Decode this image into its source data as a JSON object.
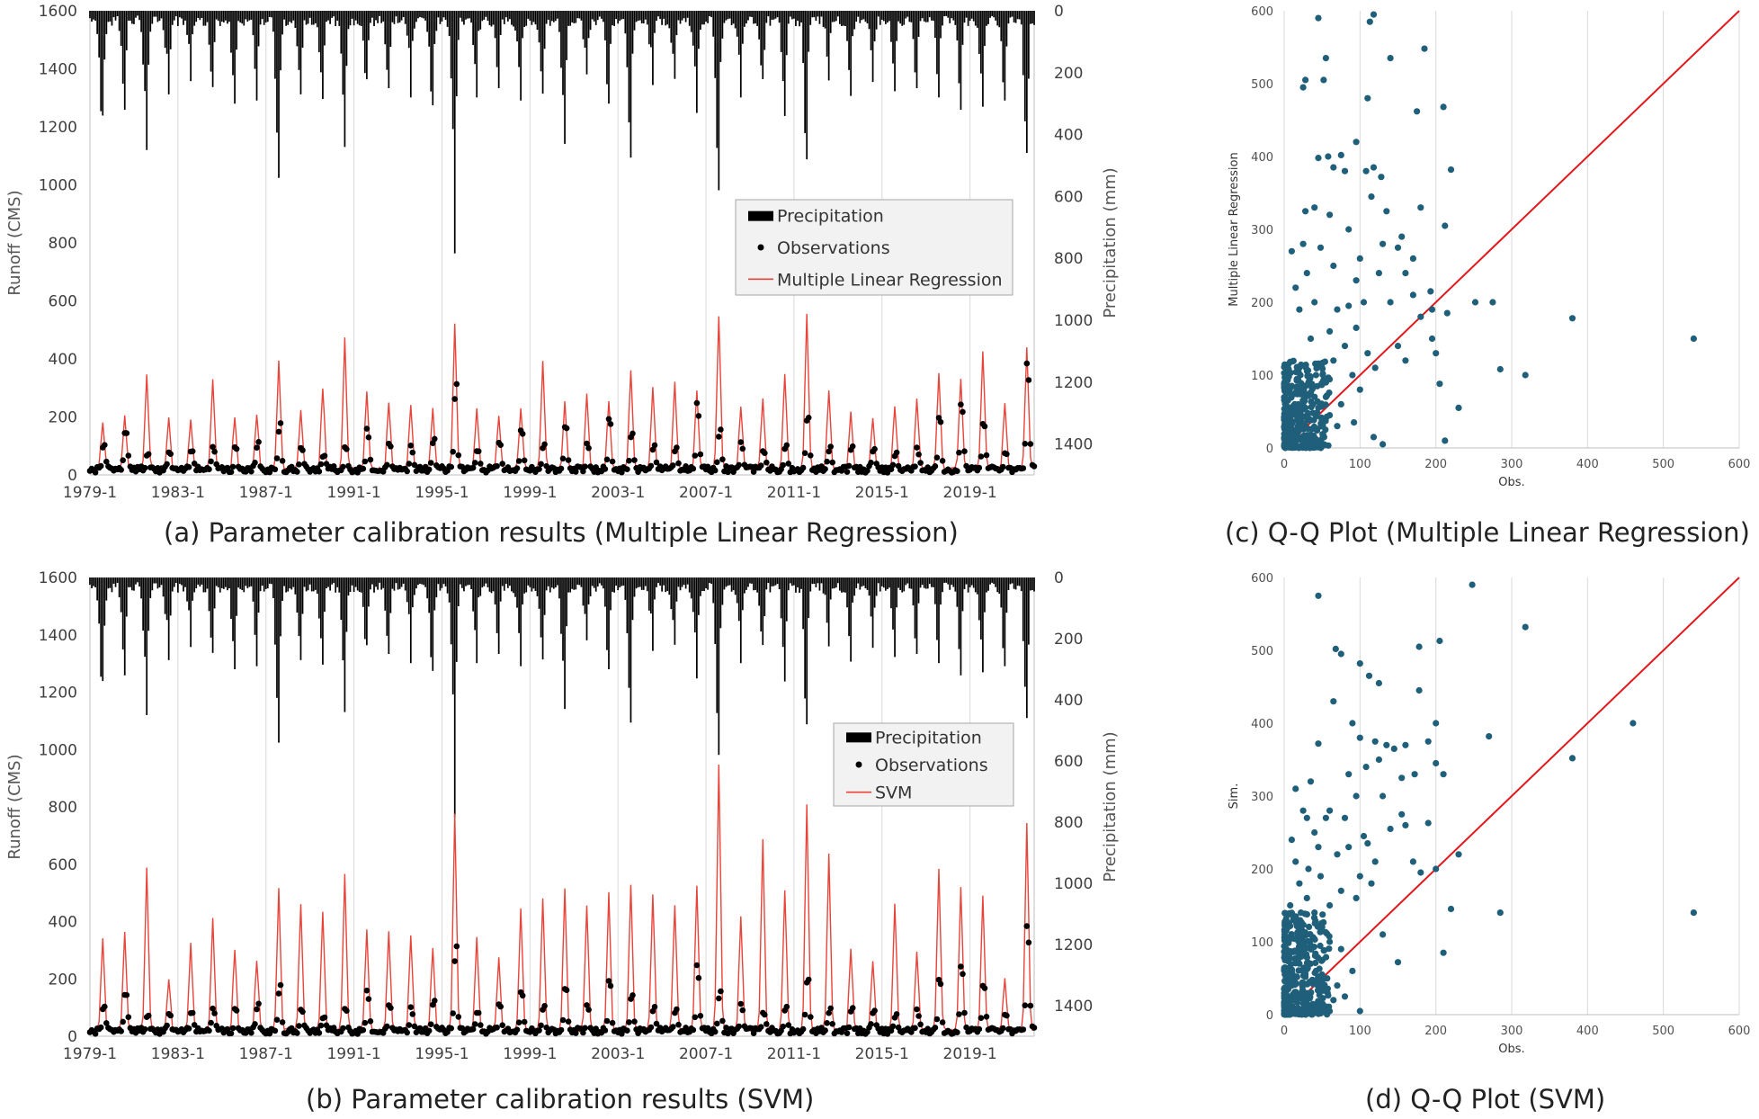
{
  "captions": {
    "a": "(a) Parameter calibration results (Multiple Linear Regression)",
    "b": "(b) Parameter calibration results (SVM)",
    "c": "(c) Q-Q Plot (Multiple Linear Regression)",
    "d": "(d) Q-Q Plot (SVM)"
  },
  "colors": {
    "precipitation": "#000000",
    "observations": "#000000",
    "model_line": "#e8443a",
    "scatter_points": "#1f5f7a",
    "identity_line": "#e3171b",
    "grid": "#d9d9d9"
  },
  "chart_data": [
    {
      "id": "a",
      "type": "line",
      "ylabel": "Runoff (CMS)",
      "y2label": "Precipitation (mm)",
      "ylim": [
        0,
        1600
      ],
      "y2lim": [
        1500,
        0
      ],
      "y2_inverted": true,
      "yticks": [
        "0",
        "200",
        "400",
        "600",
        "800",
        "1000",
        "1200",
        "1400",
        "1600"
      ],
      "y2ticks": [
        "0",
        "200",
        "400",
        "600",
        "800",
        "1000",
        "1200",
        "1400"
      ],
      "xticks": [
        "1979-1",
        "1983-1",
        "1987-1",
        "1991-1",
        "1995-1",
        "1999-1",
        "2003-1",
        "2007-1",
        "2011-1",
        "2015-1",
        "2019-1"
      ],
      "x_range": [
        "1979-1",
        "2021-12"
      ],
      "grid": "vertical",
      "legend_position": "right",
      "legend": [
        "Precipitation",
        "Observations",
        "Multiple Linear Regression"
      ],
      "series": [
        {
          "name": "Precipitation",
          "kind": "bar",
          "axis": "right",
          "annual_peaks_mm": [
            400,
            320,
            450,
            270,
            230,
            250,
            300,
            290,
            540,
            270,
            300,
            440,
            270,
            250,
            280,
            330,
            820,
            280,
            250,
            290,
            310,
            430,
            230,
            300,
            530,
            240,
            220,
            330,
            580,
            280,
            260,
            340,
            480,
            240,
            280,
            230,
            260,
            250,
            280,
            320,
            310,
            290,
            530
          ]
        },
        {
          "name": "Observations",
          "kind": "scatter",
          "axis": "left",
          "monthly_series": "seasonal",
          "annual_peaks": [
            115,
            200,
            90,
            100,
            110,
            130,
            105,
            140,
            210,
            110,
            95,
            125,
            200,
            120,
            110,
            140,
            390,
            110,
            135,
            200,
            125,
            215,
            140,
            230,
            180,
            115,
            120,
            320,
            195,
            130,
            110,
            135,
            280,
            120,
            115,
            100,
            95,
            110,
            245,
            290,
            230,
            95,
            465
          ]
        },
        {
          "name": "Multiple Linear Regression",
          "kind": "line",
          "axis": "left",
          "monthly_series": "seasonal",
          "annual_peaks": [
            185,
            200,
            350,
            195,
            190,
            330,
            195,
            210,
            390,
            220,
            300,
            470,
            290,
            250,
            240,
            225,
            520,
            230,
            200,
            230,
            390,
            250,
            280,
            255,
            365,
            305,
            315,
            290,
            550,
            240,
            265,
            350,
            560,
            290,
            215,
            200,
            240,
            260,
            350,
            330,
            430,
            250,
            440
          ]
        }
      ]
    },
    {
      "id": "b",
      "type": "line",
      "ylabel": "Runoff (CMS)",
      "y2label": "Precipitation (mm)",
      "ylim": [
        0,
        1600
      ],
      "y2lim": [
        1500,
        0
      ],
      "y2_inverted": true,
      "yticks": [
        "0",
        "200",
        "400",
        "600",
        "800",
        "1000",
        "1200",
        "1400",
        "1600"
      ],
      "y2ticks": [
        "0",
        "200",
        "400",
        "600",
        "800",
        "1000",
        "1200",
        "1400"
      ],
      "xticks": [
        "1979-1",
        "1983-1",
        "1987-1",
        "1991-1",
        "1995-1",
        "1999-1",
        "2003-1",
        "2007-1",
        "2011-1",
        "2015-1",
        "2019-1"
      ],
      "x_range": [
        "1979-1",
        "2021-12"
      ],
      "grid": "vertical",
      "legend_position": "right",
      "legend": [
        "Precipitation",
        "Observations",
        "SVM"
      ],
      "series": [
        {
          "name": "Precipitation",
          "kind": "bar",
          "axis": "right",
          "annual_peaks_mm": [
            400,
            320,
            450,
            270,
            230,
            250,
            300,
            290,
            540,
            270,
            300,
            440,
            270,
            250,
            280,
            330,
            820,
            280,
            250,
            290,
            310,
            430,
            230,
            300,
            530,
            240,
            220,
            330,
            580,
            280,
            260,
            340,
            480,
            240,
            280,
            230,
            260,
            250,
            280,
            320,
            310,
            290,
            530
          ]
        },
        {
          "name": "Observations",
          "kind": "scatter",
          "axis": "left",
          "monthly_series": "seasonal",
          "annual_peaks": [
            115,
            200,
            90,
            100,
            110,
            130,
            105,
            140,
            210,
            110,
            95,
            125,
            200,
            120,
            110,
            140,
            390,
            110,
            135,
            200,
            125,
            215,
            140,
            230,
            180,
            115,
            120,
            320,
            195,
            130,
            110,
            135,
            280,
            120,
            115,
            100,
            95,
            110,
            245,
            290,
            230,
            95,
            465
          ]
        },
        {
          "name": "SVM",
          "kind": "line",
          "axis": "left",
          "monthly_series": "seasonal",
          "annual_peaks": [
            335,
            360,
            590,
            200,
            320,
            410,
            300,
            265,
            510,
            460,
            430,
            560,
            370,
            365,
            350,
            310,
            780,
            340,
            270,
            440,
            480,
            510,
            450,
            500,
            525,
            495,
            460,
            530,
            950,
            420,
            690,
            510,
            810,
            630,
            300,
            260,
            460,
            290,
            580,
            520,
            490,
            200,
            740
          ]
        }
      ]
    },
    {
      "id": "c",
      "type": "scatter",
      "xlabel": "Obs.",
      "ylabel": "Multiple Linear Regression",
      "xlim": [
        0,
        600
      ],
      "ylim": [
        0,
        600
      ],
      "xticks": [
        "0",
        "100",
        "200",
        "300",
        "400",
        "500",
        "600"
      ],
      "yticks": [
        "0",
        "100",
        "200",
        "300",
        "400",
        "500",
        "600"
      ],
      "grid": "vertical",
      "identity_line": true,
      "points_summary": "dense cluster near origin (Obs. 0-60, Sim. 0-130)",
      "points": [
        [
          45,
          590
        ],
        [
          113,
          585
        ],
        [
          118,
          595
        ],
        [
          140,
          535
        ],
        [
          55,
          535
        ],
        [
          28,
          505
        ],
        [
          25,
          495
        ],
        [
          52,
          505
        ],
        [
          110,
          480
        ],
        [
          185,
          548
        ],
        [
          175,
          462
        ],
        [
          210,
          468
        ],
        [
          58,
          400
        ],
        [
          45,
          398
        ],
        [
          75,
          402
        ],
        [
          80,
          380
        ],
        [
          65,
          385
        ],
        [
          95,
          420
        ],
        [
          118,
          385
        ],
        [
          108,
          380
        ],
        [
          128,
          372
        ],
        [
          220,
          382
        ],
        [
          28,
          325
        ],
        [
          40,
          330
        ],
        [
          60,
          320
        ],
        [
          85,
          300
        ],
        [
          48,
          275
        ],
        [
          25,
          280
        ],
        [
          10,
          270
        ],
        [
          115,
          345
        ],
        [
          135,
          325
        ],
        [
          180,
          330
        ],
        [
          155,
          290
        ],
        [
          212,
          305
        ],
        [
          150,
          275
        ],
        [
          170,
          260
        ],
        [
          193,
          215
        ],
        [
          160,
          240
        ],
        [
          125,
          240
        ],
        [
          95,
          230
        ],
        [
          180,
          180
        ],
        [
          70,
          190
        ],
        [
          105,
          200
        ],
        [
          140,
          200
        ],
        [
          160,
          120
        ],
        [
          200,
          130
        ],
        [
          195,
          150
        ],
        [
          205,
          88
        ],
        [
          212,
          10
        ],
        [
          230,
          55
        ],
        [
          252,
          200
        ],
        [
          275,
          200
        ],
        [
          285,
          108
        ],
        [
          318,
          100
        ],
        [
          380,
          178
        ],
        [
          540,
          150
        ],
        [
          130,
          5
        ],
        [
          118,
          15
        ],
        [
          92,
          35
        ],
        [
          70,
          30
        ],
        [
          60,
          45
        ],
        [
          55,
          70
        ],
        [
          90,
          100
        ],
        [
          80,
          140
        ],
        [
          95,
          165
        ],
        [
          50,
          110
        ],
        [
          35,
          150
        ],
        [
          20,
          190
        ],
        [
          15,
          220
        ],
        [
          65,
          250
        ],
        [
          110,
          130
        ],
        [
          120,
          110
        ],
        [
          150,
          140
        ],
        [
          100,
          80
        ],
        [
          75,
          60
        ],
        [
          45,
          55
        ],
        [
          30,
          42
        ],
        [
          22,
          38
        ],
        [
          18,
          30
        ],
        [
          12,
          25
        ],
        [
          8,
          18
        ],
        [
          5,
          10
        ],
        [
          3,
          5
        ],
        [
          14,
          60
        ],
        [
          10,
          85
        ],
        [
          20,
          110
        ],
        [
          26,
          72
        ],
        [
          32,
          90
        ],
        [
          38,
          60
        ],
        [
          15,
          45
        ],
        [
          8,
          40
        ],
        [
          40,
          28
        ],
        [
          50,
          32
        ],
        [
          25,
          15
        ],
        [
          35,
          12
        ],
        [
          12,
          8
        ],
        [
          6,
          30
        ],
        [
          28,
          55
        ],
        [
          18,
          95
        ],
        [
          42,
          100
        ],
        [
          55,
          90
        ],
        [
          65,
          120
        ],
        [
          60,
          160
        ],
        [
          40,
          200
        ],
        [
          30,
          240
        ],
        [
          85,
          195
        ],
        [
          100,
          260
        ],
        [
          130,
          280
        ],
        [
          170,
          210
        ],
        [
          195,
          190
        ],
        [
          215,
          185
        ]
      ]
    },
    {
      "id": "d",
      "type": "scatter",
      "xlabel": "Obs.",
      "ylabel": "Sim.",
      "xlim": [
        0,
        600
      ],
      "ylim": [
        0,
        600
      ],
      "xticks": [
        "0",
        "100",
        "200",
        "300",
        "400",
        "500",
        "600"
      ],
      "yticks": [
        "0",
        "100",
        "200",
        "300",
        "400",
        "500",
        "600"
      ],
      "grid": "vertical",
      "identity_line": true,
      "points_summary": "dense cluster near origin (Obs. 0-60, Sim. 0-150)",
      "points": [
        [
          45,
          575
        ],
        [
          248,
          590
        ],
        [
          318,
          532
        ],
        [
          205,
          513
        ],
        [
          178,
          505
        ],
        [
          68,
          502
        ],
        [
          75,
          495
        ],
        [
          100,
          482
        ],
        [
          112,
          465
        ],
        [
          125,
          455
        ],
        [
          45,
          372
        ],
        [
          65,
          430
        ],
        [
          90,
          400
        ],
        [
          100,
          380
        ],
        [
          120,
          375
        ],
        [
          135,
          370
        ],
        [
          145,
          365
        ],
        [
          160,
          370
        ],
        [
          190,
          375
        ],
        [
          200,
          400
        ],
        [
          178,
          445
        ],
        [
          270,
          382
        ],
        [
          380,
          352
        ],
        [
          460,
          400
        ],
        [
          200,
          345
        ],
        [
          210,
          330
        ],
        [
          155,
          325
        ],
        [
          172,
          330
        ],
        [
          130,
          300
        ],
        [
          95,
          300
        ],
        [
          80,
          270
        ],
        [
          60,
          280
        ],
        [
          30,
          270
        ],
        [
          25,
          280
        ],
        [
          190,
          263
        ],
        [
          155,
          275
        ],
        [
          110,
          235
        ],
        [
          85,
          230
        ],
        [
          120,
          210
        ],
        [
          100,
          190
        ],
        [
          200,
          200
        ],
        [
          230,
          220
        ],
        [
          220,
          145
        ],
        [
          285,
          140
        ],
        [
          540,
          140
        ],
        [
          210,
          85
        ],
        [
          150,
          72
        ],
        [
          130,
          110
        ],
        [
          100,
          5
        ],
        [
          60,
          5
        ],
        [
          20,
          5
        ],
        [
          35,
          320
        ],
        [
          15,
          310
        ],
        [
          10,
          240
        ],
        [
          15,
          210
        ],
        [
          20,
          180
        ],
        [
          30,
          160
        ],
        [
          40,
          140
        ],
        [
          50,
          120
        ],
        [
          60,
          100
        ],
        [
          75,
          90
        ],
        [
          90,
          60
        ],
        [
          70,
          40
        ],
        [
          50,
          55
        ],
        [
          35,
          70
        ],
        [
          25,
          90
        ],
        [
          18,
          110
        ],
        [
          12,
          130
        ],
        [
          8,
          150
        ],
        [
          5,
          120
        ],
        [
          3,
          90
        ],
        [
          6,
          60
        ],
        [
          10,
          40
        ],
        [
          12,
          20
        ],
        [
          20,
          25
        ],
        [
          28,
          15
        ],
        [
          35,
          30
        ],
        [
          42,
          45
        ],
        [
          55,
          35
        ],
        [
          65,
          20
        ],
        [
          80,
          25
        ],
        [
          48,
          190
        ],
        [
          70,
          220
        ],
        [
          105,
          245
        ],
        [
          115,
          180
        ],
        [
          140,
          255
        ],
        [
          160,
          260
        ],
        [
          170,
          210
        ],
        [
          180,
          195
        ],
        [
          40,
          250
        ],
        [
          55,
          270
        ],
        [
          85,
          330
        ],
        [
          108,
          340
        ],
        [
          125,
          350
        ],
        [
          60,
          150
        ],
        [
          75,
          170
        ],
        [
          95,
          160
        ],
        [
          30,
          110
        ],
        [
          20,
          70
        ],
        [
          14,
          50
        ],
        [
          22,
          140
        ],
        [
          32,
          200
        ],
        [
          45,
          230
        ]
      ]
    }
  ]
}
